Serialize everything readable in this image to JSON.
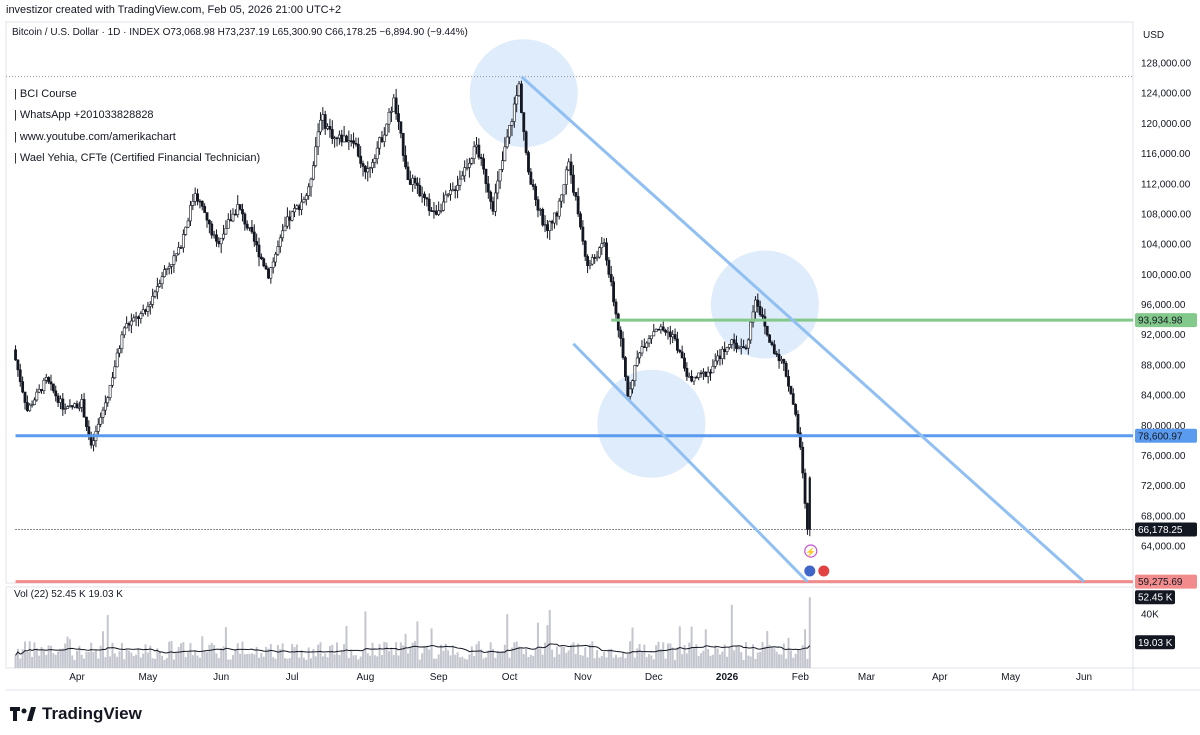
{
  "header": {
    "attribution": "investizor created with TradingView.com, Feb 05, 2026 21:00 UTC+2",
    "symbol_line": "Bitcoin / U.S. Dollar · 1D · INDEX  O73,068.98  H73,237.19  L65,300.90  C66,178.25  −6,894.90 (−9.44%)"
  },
  "notes": [
    "| BCI Course",
    "| WhatsApp +201033828828",
    "| www.youtube.com/amerikachart",
    "| Wael Yehia, CFTe (Certified Financial Technician)"
  ],
  "volume_legend": "Vol (22)  52.45 K  19.03 K",
  "brand": "TradingView",
  "colors": {
    "candle": "#131722",
    "trendline": "#90bff3",
    "support": "#5b9bef",
    "resistance_green": "#82c98b",
    "low_line": "#f28b8b",
    "circle_fill": "#d2e4fb",
    "volume": "#c3c6ce",
    "volume_ma": "#131722"
  },
  "chart_data": {
    "type": "candlestick",
    "title": "Bitcoin / U.S. Dollar · 1D · INDEX",
    "currency": "USD",
    "ylim": [
      56000,
      132000
    ],
    "y_ticks": [
      {
        "label": "128,000.00",
        "value": 128000
      },
      {
        "label": "124,000.00",
        "value": 124000
      },
      {
        "label": "120,000.00",
        "value": 120000
      },
      {
        "label": "116,000.00",
        "value": 116000
      },
      {
        "label": "112,000.00",
        "value": 112000
      },
      {
        "label": "108,000.00",
        "value": 108000
      },
      {
        "label": "104,000.00",
        "value": 104000
      },
      {
        "label": "100,000.00",
        "value": 100000
      },
      {
        "label": "96,000.00",
        "value": 96000
      },
      {
        "label": "92,000.00",
        "value": 92000
      },
      {
        "label": "88,000.00",
        "value": 88000
      },
      {
        "label": "84,000.00",
        "value": 84000
      },
      {
        "label": "80,000.00",
        "value": 80000
      },
      {
        "label": "76,000.00",
        "value": 76000
      },
      {
        "label": "72,000.00",
        "value": 72000
      },
      {
        "label": "68,000.00",
        "value": 68000
      },
      {
        "label": "64,000.00",
        "value": 64000
      }
    ],
    "x_ticks": [
      {
        "label": "Apr",
        "date": "2025-04-01"
      },
      {
        "label": "May",
        "date": "2025-05-01"
      },
      {
        "label": "Jun",
        "date": "2025-06-01"
      },
      {
        "label": "Jul",
        "date": "2025-07-01"
      },
      {
        "label": "Aug",
        "date": "2025-08-01"
      },
      {
        "label": "Sep",
        "date": "2025-09-01"
      },
      {
        "label": "Oct",
        "date": "2025-10-01"
      },
      {
        "label": "Nov",
        "date": "2025-11-01"
      },
      {
        "label": "Dec",
        "date": "2025-12-01"
      },
      {
        "label": "2026",
        "date": "2026-01-01"
      },
      {
        "label": "Feb",
        "date": "2026-02-01"
      },
      {
        "label": "Mar",
        "date": "2026-03-01"
      },
      {
        "label": "Apr",
        "date": "2026-04-01"
      },
      {
        "label": "May",
        "date": "2026-05-01"
      },
      {
        "label": "Jun",
        "date": "2026-06-01"
      }
    ],
    "price_path": [
      [
        "2025-03-06",
        90000
      ],
      [
        "2025-03-12",
        82000
      ],
      [
        "2025-03-20",
        86000
      ],
      [
        "2025-03-28",
        82000
      ],
      [
        "2025-04-04",
        83000
      ],
      [
        "2025-04-08",
        77000
      ],
      [
        "2025-04-15",
        84000
      ],
      [
        "2025-04-22",
        93000
      ],
      [
        "2025-05-01",
        95000
      ],
      [
        "2025-05-08",
        100000
      ],
      [
        "2025-05-15",
        103000
      ],
      [
        "2025-05-22",
        111000
      ],
      [
        "2025-05-31",
        104000
      ],
      [
        "2025-06-09",
        109000
      ],
      [
        "2025-06-15",
        105000
      ],
      [
        "2025-06-22",
        100000
      ],
      [
        "2025-06-30",
        107000
      ],
      [
        "2025-07-09",
        111000
      ],
      [
        "2025-07-14",
        121000
      ],
      [
        "2025-07-20",
        118000
      ],
      [
        "2025-07-28",
        118000
      ],
      [
        "2025-08-02",
        113000
      ],
      [
        "2025-08-10",
        119000
      ],
      [
        "2025-08-14",
        123000
      ],
      [
        "2025-08-20",
        113000
      ],
      [
        "2025-08-31",
        108000
      ],
      [
        "2025-09-08",
        111000
      ],
      [
        "2025-09-18",
        117000
      ],
      [
        "2025-09-25",
        109000
      ],
      [
        "2025-10-01",
        118000
      ],
      [
        "2025-10-06",
        125000
      ],
      [
        "2025-10-10",
        113000
      ],
      [
        "2025-10-17",
        106000
      ],
      [
        "2025-10-22",
        108000
      ],
      [
        "2025-10-27",
        115000
      ],
      [
        "2025-11-04",
        101000
      ],
      [
        "2025-11-11",
        104000
      ],
      [
        "2025-11-18",
        91000
      ],
      [
        "2025-11-21",
        84000
      ],
      [
        "2025-11-26",
        90000
      ],
      [
        "2025-12-03",
        93000
      ],
      [
        "2025-12-10",
        92000
      ],
      [
        "2025-12-17",
        86000
      ],
      [
        "2025-12-25",
        87000
      ],
      [
        "2026-01-03",
        91000
      ],
      [
        "2026-01-10",
        90000
      ],
      [
        "2026-01-14",
        97000
      ],
      [
        "2026-01-20",
        91000
      ],
      [
        "2026-01-26",
        88000
      ],
      [
        "2026-01-30",
        83000
      ],
      [
        "2026-02-02",
        77000
      ],
      [
        "2026-02-05",
        66178.25
      ]
    ],
    "last_candle": {
      "date": "2026-02-05",
      "open": 73068.98,
      "high": 73237.19,
      "low": 65300.9,
      "close": 66178.25,
      "change": -6894.9,
      "change_pct": -9.44
    },
    "levels": [
      {
        "label": "93,934.98",
        "value": 93934.98,
        "color": "#82c98b",
        "from": "2025-11-13"
      },
      {
        "label": "78,600.97",
        "value": 78600.97,
        "color": "#5b9bef",
        "from": "2025-03-06"
      },
      {
        "label": "66,178.25",
        "value": 66178.25,
        "color": "#131722",
        "style": "dotted",
        "from": "2025-03-06"
      },
      {
        "label": "59,275.69",
        "value": 59275.69,
        "color": "#f28b8b",
        "from": "2025-03-06"
      }
    ],
    "ath_marker": {
      "value": 126200
    },
    "trendlines": [
      {
        "from": [
          "2025-10-06",
          126200
        ],
        "to": [
          "2026-06-01",
          59275.69
        ]
      },
      {
        "from": [
          "2025-10-28",
          90800
        ],
        "to": [
          "2026-02-04",
          59275.69
        ]
      }
    ],
    "circles": [
      {
        "date": "2025-10-07",
        "value": 124000
      },
      {
        "date": "2026-01-17",
        "value": 96000
      },
      {
        "date": "2025-11-30",
        "value": 80200
      }
    ],
    "volume": {
      "label": "Vol (22)",
      "last": "52.45 K",
      "ma": "19.03 K",
      "ticks": [
        {
          "label": "40K",
          "value": 40000
        }
      ],
      "ylim": [
        0,
        60000
      ]
    }
  }
}
